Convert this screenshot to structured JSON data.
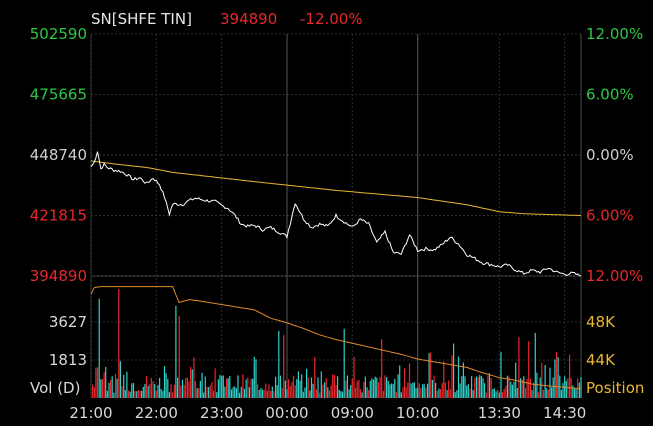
{
  "header": {
    "symbol": "SN[SHFE TIN]",
    "price": "394890",
    "change": "-12.00%"
  },
  "colors": {
    "background": "#000000",
    "grid": "#2e2e2e",
    "price_line": "#ffffff",
    "avg_line": "#e8b833",
    "up": "#e8282d",
    "down": "#2fd0c8",
    "position_line": "#e08a2a",
    "up_label": "#2ec845",
    "flat_label": "#cfcfcf",
    "down_label": "#e8282d",
    "right_vol_label": "#e8b833"
  },
  "chart_data": {
    "type": "line",
    "price_panel": {
      "left_ticks": [
        "502590",
        "475665",
        "448740",
        "421815",
        "394890"
      ],
      "left_tick_values": [
        502590,
        475665,
        448740,
        421815,
        394890
      ],
      "right_ticks": [
        "12.00%",
        "6.00%",
        "0.00%",
        "6.00%",
        "12.00%"
      ],
      "ylim": [
        394890,
        502590
      ],
      "prev_settle": 448740,
      "series": [
        {
          "type": "price",
          "x": [
            0,
            2,
            4,
            6,
            8,
            10,
            14,
            18,
            22,
            26,
            30,
            34,
            38,
            42,
            45,
            48,
            50,
            52,
            56,
            60,
            64,
            70,
            76,
            80,
            84,
            88,
            92,
            96,
            100,
            105,
            110,
            115,
            120,
            125,
            130,
            135,
            140,
            145,
            150,
            155,
            160,
            165,
            170,
            175,
            180,
            185,
            190,
            195,
            200,
            205,
            210,
            215,
            220,
            225,
            230,
            235,
            240,
            245,
            250,
            255,
            260,
            265,
            270,
            275,
            280,
            285,
            290,
            295,
            300
          ],
          "y": [
            443500,
            445500,
            450600,
            442600,
            444500,
            443200,
            442000,
            441500,
            440000,
            437800,
            438600,
            436000,
            438500,
            435600,
            430000,
            422500,
            426800,
            427000,
            426700,
            428500,
            429500,
            428500,
            428000,
            426300,
            425000,
            422000,
            418000,
            417000,
            417500,
            415500,
            416500,
            414500,
            412500,
            427500,
            420500,
            416500,
            418000,
            417000,
            421800,
            419000,
            416600,
            420100,
            418000,
            409600,
            414500,
            405400,
            404600,
            413200,
            406300,
            407000,
            406500,
            408900,
            412200,
            409200,
            404500,
            402700,
            400700,
            400000,
            399000,
            399800,
            397600,
            396000,
            397400,
            396600,
            398500,
            396600,
            395700,
            396100,
            394890
          ]
        },
        {
          "type": "average",
          "x": [
            0,
            15,
            35,
            50,
            100,
            150,
            200,
            230,
            250,
            265,
            300
          ],
          "y": [
            446100,
            444700,
            443100,
            441000,
            436900,
            433000,
            429800,
            426600,
            423500,
            422600,
            421800
          ]
        }
      ]
    },
    "volume_panel": {
      "left_ticks": [
        "3627",
        "1813"
      ],
      "left_tick_values": [
        3627,
        1813
      ],
      "right_ticks": [
        "48K",
        "44K"
      ],
      "vol_max": 5440,
      "legend_left": "Vol (D)",
      "legend_right": "Position",
      "position": {
        "x": [
          0,
          2,
          6,
          50,
          52,
          54,
          60,
          65,
          100,
          110,
          120,
          125,
          130,
          140,
          150,
          160,
          170,
          180,
          190,
          200,
          210,
          220,
          230,
          240,
          250,
          260,
          270,
          280,
          300
        ],
        "y": [
          51200,
          51900,
          52000,
          52000,
          51100,
          50300,
          50600,
          50500,
          49500,
          48600,
          48100,
          47800,
          47500,
          46800,
          46300,
          45900,
          45500,
          45100,
          44700,
          44200,
          43900,
          43600,
          43300,
          42700,
          42200,
          41900,
          41500,
          41300,
          41000
        ],
        "ylim": [
          40000,
          52500
        ]
      }
    },
    "time_ticks": [
      "21:00",
      "22:00",
      "23:00",
      "00:00",
      "09:00",
      "10:00",
      "13:30",
      "14:30"
    ],
    "time_tick_index": [
      0,
      40,
      80,
      120,
      160,
      200,
      250,
      290
    ],
    "session_breaks": [
      120,
      200
    ],
    "n_points": 300
  }
}
